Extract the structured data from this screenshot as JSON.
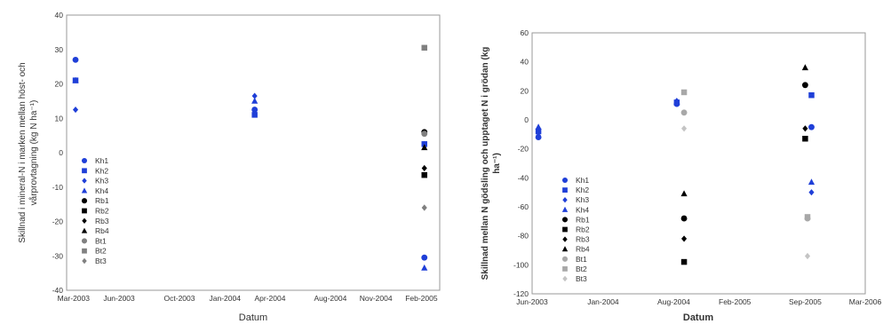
{
  "chart_data": [
    {
      "type": "scatter",
      "title": "",
      "xlabel": "Datum",
      "ylabel_lines": [
        "Skillnad i mineral-N i marken mellan höst- och",
        "vårprovtagning (kg N ha⁻¹)"
      ],
      "ylim": [
        -40,
        40
      ],
      "yticks": [
        -40,
        -30,
        -20,
        -10,
        0,
        10,
        20,
        30,
        40
      ],
      "xlim": [
        "2003-02-15",
        "2005-03-10"
      ],
      "xticks": [
        {
          "date": "2003-03-01",
          "label": "Mar-2003"
        },
        {
          "date": "2003-06-01",
          "label": "Jun-2003"
        },
        {
          "date": "2003-10-01",
          "label": "Oct-2003"
        },
        {
          "date": "2004-01-01",
          "label": "Jan-2004"
        },
        {
          "date": "2004-04-01",
          "label": "Apr-2004"
        },
        {
          "date": "2004-08-01",
          "label": "Aug-2004"
        },
        {
          "date": "2004-11-01",
          "label": "Nov-2004"
        },
        {
          "date": "2005-02-01",
          "label": "Feb-2005"
        }
      ],
      "grid": false,
      "legend": "bottom-left",
      "series": [
        {
          "name": "Kh1",
          "color": "#1f3fd8",
          "marker": "circle",
          "points": [
            [
              "2003-03-05",
              27
            ],
            [
              "2004-03-01",
              12.5
            ],
            [
              "2005-02-07",
              -30.5
            ]
          ]
        },
        {
          "name": "Kh2",
          "color": "#1f3fd8",
          "marker": "square",
          "points": [
            [
              "2003-03-05",
              21
            ],
            [
              "2004-03-01",
              11
            ],
            [
              "2005-02-07",
              2.5
            ]
          ]
        },
        {
          "name": "Kh3",
          "color": "#1f3fd8",
          "marker": "diamond",
          "points": [
            [
              "2003-03-05",
              12.5
            ],
            [
              "2004-03-01",
              16.5
            ],
            [
              "2005-02-07",
              2.5
            ]
          ]
        },
        {
          "name": "Kh4",
          "color": "#1f3fd8",
          "marker": "triangle",
          "points": [
            [
              "2003-03-05",
              21
            ],
            [
              "2004-03-01",
              15
            ],
            [
              "2005-02-07",
              -33.5
            ]
          ]
        },
        {
          "name": "Rb1",
          "color": "#000000",
          "marker": "circle",
          "points": [
            [
              "2005-02-07",
              6
            ]
          ]
        },
        {
          "name": "Rb2",
          "color": "#000000",
          "marker": "square",
          "points": [
            [
              "2005-02-07",
              -6.5
            ]
          ]
        },
        {
          "name": "Rb3",
          "color": "#000000",
          "marker": "diamond",
          "points": [
            [
              "2005-02-07",
              -4.5
            ]
          ]
        },
        {
          "name": "Rb4",
          "color": "#000000",
          "marker": "triangle",
          "points": [
            [
              "2005-02-07",
              1.5
            ]
          ]
        },
        {
          "name": "Bt1",
          "color": "#808080",
          "marker": "circle",
          "points": [
            [
              "2005-02-07",
              5.5
            ]
          ]
        },
        {
          "name": "Bt2",
          "color": "#808080",
          "marker": "square",
          "points": [
            [
              "2005-02-07",
              30.5
            ]
          ]
        },
        {
          "name": "Bt3",
          "color": "#808080",
          "marker": "diamond",
          "points": [
            [
              "2005-02-07",
              -16
            ]
          ]
        }
      ]
    },
    {
      "type": "scatter",
      "title": "",
      "xlabel": "Datum",
      "ylabel_lines": [
        "Skillnad mellan N gödsling och upptaget N i grödan (kg",
        "ha⁻¹)"
      ],
      "ylim": [
        -120,
        60
      ],
      "yticks": [
        -120,
        -100,
        -80,
        -60,
        -40,
        -20,
        0,
        20,
        40,
        60
      ],
      "xlim": [
        "2003-06-01",
        "2006-03-01"
      ],
      "xticks": [
        {
          "date": "2003-06-01",
          "label": "Jun-2003"
        },
        {
          "date": "2004-01-01",
          "label": "Jan-2004"
        },
        {
          "date": "2004-08-01",
          "label": "Aug-2004"
        },
        {
          "date": "2005-02-01",
          "label": "Feb-2005"
        },
        {
          "date": "2005-09-01",
          "label": "Sep-2005"
        },
        {
          "date": "2006-03-01",
          "label": "Mar-2006"
        }
      ],
      "grid": false,
      "legend": "bottom-left",
      "series": [
        {
          "name": "Kh1",
          "color": "#1f3fd8",
          "marker": "circle",
          "points": [
            [
              "2003-06-20",
              -12
            ],
            [
              "2004-08-10",
              11
            ],
            [
              "2005-09-20",
              -5
            ]
          ]
        },
        {
          "name": "Kh2",
          "color": "#1f3fd8",
          "marker": "square",
          "points": [
            [
              "2003-06-20",
              -8
            ],
            [
              "2004-08-10",
              12
            ],
            [
              "2005-09-20",
              17
            ]
          ]
        },
        {
          "name": "Kh3",
          "color": "#1f3fd8",
          "marker": "diamond",
          "points": [
            [
              "2003-06-20",
              -9
            ],
            [
              "2004-08-10",
              13
            ],
            [
              "2005-09-20",
              -50
            ]
          ]
        },
        {
          "name": "Kh4",
          "color": "#1f3fd8",
          "marker": "triangle",
          "points": [
            [
              "2003-06-20",
              -5
            ],
            [
              "2004-08-10",
              12
            ],
            [
              "2005-09-20",
              -43
            ]
          ]
        },
        {
          "name": "Rb1",
          "color": "#000000",
          "marker": "circle",
          "points": [
            [
              "2004-09-01",
              -68
            ],
            [
              "2005-09-01",
              24
            ]
          ]
        },
        {
          "name": "Rb2",
          "color": "#000000",
          "marker": "square",
          "points": [
            [
              "2004-09-01",
              -98
            ],
            [
              "2005-09-01",
              -13
            ]
          ]
        },
        {
          "name": "Rb3",
          "color": "#000000",
          "marker": "diamond",
          "points": [
            [
              "2004-09-01",
              -82
            ],
            [
              "2005-09-01",
              -6
            ]
          ]
        },
        {
          "name": "Rb4",
          "color": "#000000",
          "marker": "triangle",
          "points": [
            [
              "2004-09-01",
              -51
            ],
            [
              "2005-09-01",
              36
            ]
          ]
        },
        {
          "name": "Bt1",
          "color": "#a8a8a8",
          "marker": "circle",
          "points": [
            [
              "2004-09-01",
              5
            ],
            [
              "2005-09-08",
              -68
            ]
          ]
        },
        {
          "name": "Bt2",
          "color": "#a8a8a8",
          "marker": "square",
          "points": [
            [
              "2004-09-01",
              19
            ],
            [
              "2005-09-08",
              -67
            ]
          ]
        },
        {
          "name": "Bt3",
          "color": "#c4c4c4",
          "marker": "diamond",
          "points": [
            [
              "2004-09-01",
              -6
            ],
            [
              "2005-09-08",
              -94
            ]
          ]
        }
      ]
    }
  ]
}
